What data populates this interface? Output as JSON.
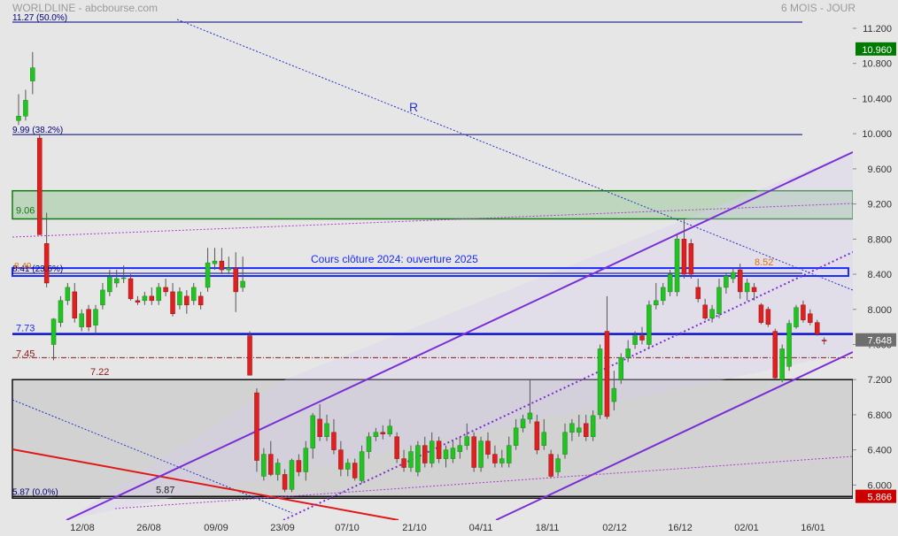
{
  "header": {
    "title": "WORLDLINE - abcbourse.com",
    "period": "6 MOIS - JOUR"
  },
  "colors": {
    "background": "#e6e6e6",
    "up_candle": "#22c222",
    "down_candle": "#dd2020",
    "fib_line": "#00007a",
    "channel": "#7a2fd6",
    "last_price_tag": "#007a00",
    "low_price_tag": "#cc0000"
  },
  "chart_data": {
    "type": "candlestick",
    "ylim": [
      5.8,
      11.3
    ],
    "y_ticks": [
      "11.200",
      "10.800",
      "10.400",
      "10.000",
      "9.600",
      "9.200",
      "8.800",
      "8.400",
      "8.000",
      "7.600",
      "7.200",
      "6.800",
      "6.400",
      "6.000"
    ],
    "x_ticks": [
      "12/08",
      "26/08",
      "09/09",
      "23/09",
      "07/10",
      "21/10",
      "04/11",
      "18/11",
      "02/12",
      "16/12",
      "02/01",
      "16/01"
    ],
    "price_tags": {
      "high": "10.960",
      "last": "7.648",
      "low": "5.866"
    },
    "fibonacci": [
      {
        "label": "11.27  (50.0%)",
        "value": 11.27
      },
      {
        "label": "9.99  (38.2%)",
        "value": 9.99
      },
      {
        "label": "8.41  (23.6%)",
        "value": 8.41
      },
      {
        "label": "5.87  (0.0%)",
        "value": 5.87
      }
    ],
    "levels": [
      {
        "label": "9.06",
        "value": 9.06
      },
      {
        "label": "8.49",
        "value": 8.49
      },
      {
        "label": "7.73",
        "value": 7.73
      },
      {
        "label": "7.45",
        "value": 7.45
      },
      {
        "label": "7.22",
        "value": 7.22
      },
      {
        "label": "8.52",
        "value": 8.52
      },
      {
        "label": "5.87",
        "value": 5.87
      }
    ],
    "annotations": {
      "resistance": "R",
      "zone": "Cours clôture 2024: ouverture 2025"
    },
    "green_zone": [
      9.03,
      9.35
    ],
    "blue_zone": [
      8.38,
      8.47
    ],
    "gray_zone": [
      5.85,
      7.2
    ],
    "candles": [
      {
        "o": 10.15,
        "h": 10.45,
        "l": 10.1,
        "c": 10.2
      },
      {
        "o": 10.2,
        "h": 10.5,
        "l": 10.15,
        "c": 10.38
      },
      {
        "o": 10.6,
        "h": 10.93,
        "l": 10.45,
        "c": 10.75
      },
      {
        "o": 9.95,
        "h": 10.0,
        "l": 8.85,
        "c": 8.85
      },
      {
        "o": 8.75,
        "h": 9.1,
        "l": 8.25,
        "c": 8.3
      },
      {
        "o": 7.6,
        "h": 7.9,
        "l": 7.42,
        "c": 7.89
      },
      {
        "o": 7.85,
        "h": 8.15,
        "l": 7.8,
        "c": 8.1
      },
      {
        "o": 8.1,
        "h": 8.3,
        "l": 8.05,
        "c": 8.25
      },
      {
        "o": 8.2,
        "h": 8.3,
        "l": 7.85,
        "c": 7.9
      },
      {
        "o": 7.8,
        "h": 8.0,
        "l": 7.75,
        "c": 7.95
      },
      {
        "o": 8.0,
        "h": 8.05,
        "l": 7.75,
        "c": 7.8
      },
      {
        "o": 7.82,
        "h": 8.05,
        "l": 7.72,
        "c": 8.0
      },
      {
        "o": 8.05,
        "h": 8.3,
        "l": 8.0,
        "c": 8.22
      },
      {
        "o": 8.2,
        "h": 8.45,
        "l": 8.15,
        "c": 8.37
      },
      {
        "o": 8.3,
        "h": 8.45,
        "l": 8.25,
        "c": 8.35
      },
      {
        "o": 8.35,
        "h": 8.5,
        "l": 8.3,
        "c": 8.36
      },
      {
        "o": 8.35,
        "h": 8.4,
        "l": 8.1,
        "c": 8.12
      },
      {
        "o": 8.1,
        "h": 8.15,
        "l": 8.05,
        "c": 8.08
      },
      {
        "o": 8.1,
        "h": 8.2,
        "l": 8.05,
        "c": 8.15
      },
      {
        "o": 8.15,
        "h": 8.25,
        "l": 8.05,
        "c": 8.1
      },
      {
        "o": 8.1,
        "h": 8.3,
        "l": 8.05,
        "c": 8.25
      },
      {
        "o": 8.25,
        "h": 8.35,
        "l": 8.15,
        "c": 8.2
      },
      {
        "o": 8.2,
        "h": 8.3,
        "l": 7.92,
        "c": 7.95
      },
      {
        "o": 8.05,
        "h": 8.25,
        "l": 8.0,
        "c": 8.2
      },
      {
        "o": 8.15,
        "h": 8.22,
        "l": 7.95,
        "c": 8.05
      },
      {
        "o": 8.1,
        "h": 8.3,
        "l": 8.05,
        "c": 8.25
      },
      {
        "o": 8.15,
        "h": 8.2,
        "l": 8.0,
        "c": 8.05
      },
      {
        "o": 8.25,
        "h": 8.7,
        "l": 8.2,
        "c": 8.53
      },
      {
        "o": 8.52,
        "h": 8.7,
        "l": 8.45,
        "c": 8.55
      },
      {
        "o": 8.55,
        "h": 8.7,
        "l": 8.4,
        "c": 8.45
      },
      {
        "o": 8.45,
        "h": 8.6,
        "l": 8.4,
        "c": 8.47
      },
      {
        "o": 8.47,
        "h": 8.65,
        "l": 7.97,
        "c": 8.2
      },
      {
        "o": 8.25,
        "h": 8.6,
        "l": 8.2,
        "c": 8.32
      },
      {
        "o": 7.7,
        "h": 7.75,
        "l": 7.25,
        "c": 7.25
      },
      {
        "o": 7.05,
        "h": 7.1,
        "l": 6.15,
        "c": 6.28
      },
      {
        "o": 6.1,
        "h": 6.42,
        "l": 6.05,
        "c": 6.35
      },
      {
        "o": 6.35,
        "h": 6.5,
        "l": 6.1,
        "c": 6.12
      },
      {
        "o": 6.12,
        "h": 6.3,
        "l": 6.05,
        "c": 6.25
      },
      {
        "o": 6.12,
        "h": 6.18,
        "l": 5.92,
        "c": 5.95
      },
      {
        "o": 5.95,
        "h": 6.3,
        "l": 5.92,
        "c": 6.28
      },
      {
        "o": 6.28,
        "h": 6.35,
        "l": 6.1,
        "c": 6.15
      },
      {
        "o": 6.15,
        "h": 6.5,
        "l": 6.05,
        "c": 6.42
      },
      {
        "o": 6.42,
        "h": 6.82,
        "l": 6.3,
        "c": 6.79
      },
      {
        "o": 6.75,
        "h": 6.92,
        "l": 6.5,
        "c": 6.55
      },
      {
        "o": 6.55,
        "h": 6.8,
        "l": 6.5,
        "c": 6.7
      },
      {
        "o": 6.6,
        "h": 6.75,
        "l": 6.35,
        "c": 6.4
      },
      {
        "o": 6.4,
        "h": 6.5,
        "l": 6.1,
        "c": 6.18
      },
      {
        "o": 6.18,
        "h": 6.3,
        "l": 6.1,
        "c": 6.25
      },
      {
        "o": 6.25,
        "h": 6.3,
        "l": 6.05,
        "c": 6.08
      },
      {
        "o": 6.05,
        "h": 6.45,
        "l": 6.02,
        "c": 6.38
      },
      {
        "o": 6.38,
        "h": 6.6,
        "l": 6.3,
        "c": 6.55
      },
      {
        "o": 6.55,
        "h": 6.65,
        "l": 6.5,
        "c": 6.6
      },
      {
        "o": 6.6,
        "h": 6.68,
        "l": 6.52,
        "c": 6.58
      },
      {
        "o": 6.58,
        "h": 6.75,
        "l": 6.55,
        "c": 6.67
      },
      {
        "o": 6.55,
        "h": 6.6,
        "l": 6.25,
        "c": 6.3
      },
      {
        "o": 6.3,
        "h": 6.4,
        "l": 6.15,
        "c": 6.2
      },
      {
        "o": 6.2,
        "h": 6.45,
        "l": 6.15,
        "c": 6.38
      },
      {
        "o": 6.15,
        "h": 6.5,
        "l": 6.1,
        "c": 6.45
      },
      {
        "o": 6.45,
        "h": 6.55,
        "l": 6.2,
        "c": 6.25
      },
      {
        "o": 6.25,
        "h": 6.6,
        "l": 6.2,
        "c": 6.5
      },
      {
        "o": 6.5,
        "h": 6.55,
        "l": 6.25,
        "c": 6.3
      },
      {
        "o": 6.3,
        "h": 6.45,
        "l": 6.2,
        "c": 6.4
      },
      {
        "o": 6.3,
        "h": 6.5,
        "l": 6.25,
        "c": 6.42
      },
      {
        "o": 6.38,
        "h": 6.55,
        "l": 6.3,
        "c": 6.45
      },
      {
        "o": 6.45,
        "h": 6.7,
        "l": 6.4,
        "c": 6.55
      },
      {
        "o": 6.55,
        "h": 6.6,
        "l": 6.15,
        "c": 6.2
      },
      {
        "o": 6.2,
        "h": 6.55,
        "l": 6.15,
        "c": 6.5
      },
      {
        "o": 6.5,
        "h": 6.6,
        "l": 6.3,
        "c": 6.35
      },
      {
        "o": 6.35,
        "h": 6.45,
        "l": 6.2,
        "c": 6.25
      },
      {
        "o": 6.25,
        "h": 6.4,
        "l": 6.2,
        "c": 6.3
      },
      {
        "o": 6.25,
        "h": 6.55,
        "l": 6.2,
        "c": 6.45
      },
      {
        "o": 6.45,
        "h": 6.75,
        "l": 6.4,
        "c": 6.65
      },
      {
        "o": 6.65,
        "h": 6.8,
        "l": 6.6,
        "c": 6.75
      },
      {
        "o": 6.75,
        "h": 7.2,
        "l": 6.7,
        "c": 6.82
      },
      {
        "o": 6.72,
        "h": 6.8,
        "l": 6.35,
        "c": 6.4
      },
      {
        "o": 6.45,
        "h": 6.75,
        "l": 6.4,
        "c": 6.6
      },
      {
        "o": 6.35,
        "h": 6.4,
        "l": 6.08,
        "c": 6.1
      },
      {
        "o": 6.15,
        "h": 6.35,
        "l": 6.1,
        "c": 6.3
      },
      {
        "o": 6.35,
        "h": 6.7,
        "l": 6.3,
        "c": 6.6
      },
      {
        "o": 6.6,
        "h": 6.75,
        "l": 6.5,
        "c": 6.7
      },
      {
        "o": 6.6,
        "h": 6.8,
        "l": 6.55,
        "c": 6.65
      },
      {
        "o": 6.7,
        "h": 6.8,
        "l": 6.5,
        "c": 6.55
      },
      {
        "o": 6.55,
        "h": 6.85,
        "l": 6.5,
        "c": 6.79
      },
      {
        "o": 6.8,
        "h": 7.6,
        "l": 6.75,
        "c": 7.55
      },
      {
        "o": 7.75,
        "h": 8.15,
        "l": 6.75,
        "c": 6.78
      },
      {
        "o": 6.95,
        "h": 7.3,
        "l": 6.85,
        "c": 7.1
      },
      {
        "o": 7.2,
        "h": 7.5,
        "l": 7.15,
        "c": 7.45
      },
      {
        "o": 7.45,
        "h": 7.65,
        "l": 7.4,
        "c": 7.55
      },
      {
        "o": 7.6,
        "h": 7.75,
        "l": 7.55,
        "c": 7.7
      },
      {
        "o": 7.7,
        "h": 7.8,
        "l": 7.6,
        "c": 7.65
      },
      {
        "o": 7.6,
        "h": 8.1,
        "l": 7.55,
        "c": 8.05
      },
      {
        "o": 8.05,
        "h": 8.3,
        "l": 8.0,
        "c": 8.1
      },
      {
        "o": 8.1,
        "h": 8.3,
        "l": 8.05,
        "c": 8.25
      },
      {
        "o": 8.2,
        "h": 8.45,
        "l": 8.15,
        "c": 8.4
      },
      {
        "o": 8.2,
        "h": 8.85,
        "l": 8.15,
        "c": 8.8
      },
      {
        "o": 8.8,
        "h": 9.02,
        "l": 8.35,
        "c": 8.4
      },
      {
        "o": 8.75,
        "h": 8.8,
        "l": 8.35,
        "c": 8.4
      },
      {
        "o": 8.25,
        "h": 8.35,
        "l": 8.08,
        "c": 8.12
      },
      {
        "o": 8.05,
        "h": 8.12,
        "l": 7.88,
        "c": 7.9
      },
      {
        "o": 7.9,
        "h": 8.05,
        "l": 7.85,
        "c": 8.0
      },
      {
        "o": 7.95,
        "h": 8.35,
        "l": 7.9,
        "c": 8.25
      },
      {
        "o": 8.25,
        "h": 8.42,
        "l": 8.18,
        "c": 8.38
      },
      {
        "o": 8.35,
        "h": 8.48,
        "l": 8.3,
        "c": 8.42
      },
      {
        "o": 8.45,
        "h": 8.52,
        "l": 8.12,
        "c": 8.2
      },
      {
        "o": 8.2,
        "h": 8.35,
        "l": 8.1,
        "c": 8.3
      },
      {
        "o": 8.25,
        "h": 8.3,
        "l": 8.1,
        "c": 8.2
      },
      {
        "o": 8.05,
        "h": 8.07,
        "l": 7.83,
        "c": 7.85
      },
      {
        "o": 8.0,
        "h": 8.03,
        "l": 7.8,
        "c": 7.83
      },
      {
        "o": 7.75,
        "h": 7.78,
        "l": 7.2,
        "c": 7.22
      },
      {
        "o": 7.2,
        "h": 7.6,
        "l": 7.17,
        "c": 7.55
      },
      {
        "o": 7.35,
        "h": 7.88,
        "l": 7.3,
        "c": 7.84
      },
      {
        "o": 7.8,
        "h": 8.05,
        "l": 7.78,
        "c": 8.02
      },
      {
        "o": 8.05,
        "h": 8.1,
        "l": 7.85,
        "c": 7.88
      },
      {
        "o": 7.95,
        "h": 8.0,
        "l": 7.82,
        "c": 7.85
      },
      {
        "o": 7.85,
        "h": 7.88,
        "l": 7.7,
        "c": 7.72
      },
      {
        "o": 7.65,
        "h": 7.68,
        "l": 7.6,
        "c": 7.648
      }
    ]
  }
}
